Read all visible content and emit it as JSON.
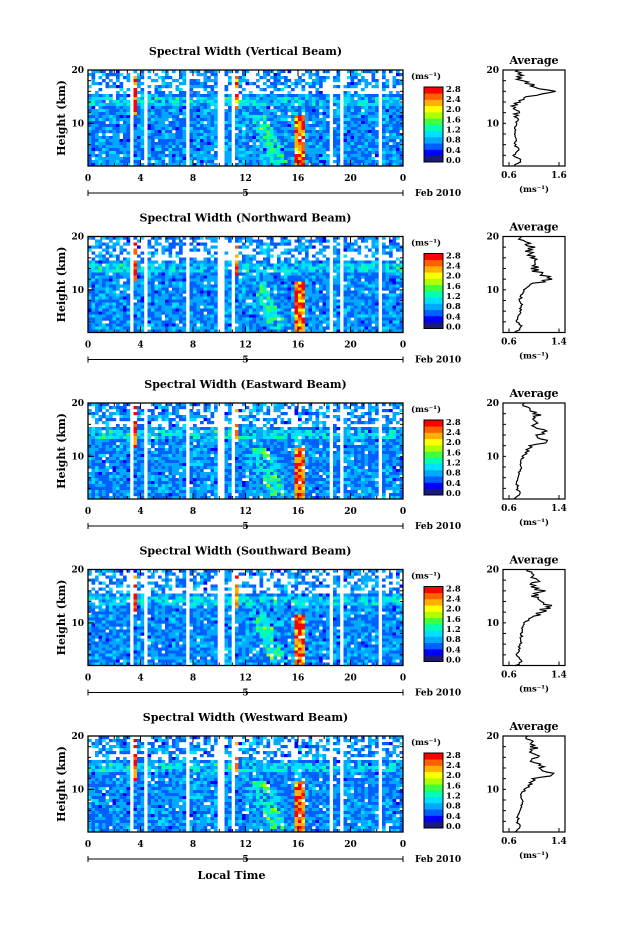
{
  "chart_data": {
    "type": "heatmap",
    "x_label": "Local Time",
    "date_label": "Feb 2010",
    "x_ticks": [
      "0",
      "4",
      "8",
      "12",
      "16",
      "20",
      "0"
    ],
    "x_range_hours": [
      0,
      24
    ],
    "day_marker": "5",
    "height_label": "Height (km)",
    "height_ticks": [
      "10",
      "20"
    ],
    "height_range_km": [
      2,
      20
    ],
    "colorbar": {
      "unit": "(ms⁻¹)",
      "ticks": [
        "2.8",
        "2.4",
        "2.0",
        "1.6",
        "1.2",
        "0.8",
        "0.4",
        "0.0"
      ],
      "range": [
        0.0,
        2.8
      ],
      "colors": [
        "#1a1a7a",
        "#0000ff",
        "#0060ff",
        "#00a8ff",
        "#00e0ff",
        "#00ffb0",
        "#40ff40",
        "#b0ff00",
        "#ffff00",
        "#ffb000",
        "#ff6000",
        "#ff0000"
      ]
    },
    "average_title": "Average",
    "average_unit": "(ms⁻¹)",
    "panels": [
      {
        "title": "Spectral Width (Vertical Beam)",
        "avg_ticks": [
          "0.6",
          "1.6"
        ],
        "avg_range": [
          0.6,
          1.6
        ],
        "avg_profile": {
          "height_km": [
            2,
            3,
            4,
            5,
            6,
            7,
            8,
            9,
            10,
            11,
            12,
            13,
            14,
            15,
            16,
            17,
            18,
            19,
            20
          ],
          "value": [
            0.7,
            0.85,
            0.7,
            0.8,
            0.72,
            0.75,
            0.7,
            0.72,
            0.75,
            0.78,
            0.74,
            0.7,
            0.8,
            1.0,
            1.45,
            1.1,
            0.85,
            0.8,
            0.78
          ]
        }
      },
      {
        "title": "Spectral Width (Northward Beam)",
        "avg_ticks": [
          "0.6",
          "1.4"
        ],
        "avg_range": [
          0.6,
          1.4
        ],
        "avg_profile": {
          "height_km": [
            2,
            3,
            4,
            5,
            6,
            7,
            8,
            9,
            10,
            11,
            12,
            13,
            14,
            15,
            16,
            17,
            18,
            19,
            20
          ],
          "value": [
            0.7,
            0.8,
            0.72,
            0.75,
            0.78,
            0.8,
            0.78,
            0.8,
            0.85,
            0.95,
            1.25,
            1.1,
            1.0,
            0.95,
            1.0,
            0.9,
            0.95,
            0.85,
            0.8
          ]
        }
      },
      {
        "title": "Spectral Width (Eastward Beam)",
        "avg_ticks": [
          "0.6",
          "1.4"
        ],
        "avg_range": [
          0.6,
          1.4
        ],
        "avg_profile": {
          "height_km": [
            2,
            3,
            4,
            5,
            6,
            7,
            8,
            9,
            10,
            11,
            12,
            13,
            14,
            15,
            16,
            17,
            18,
            19,
            20
          ],
          "value": [
            0.7,
            0.8,
            0.72,
            0.74,
            0.75,
            0.76,
            0.78,
            0.8,
            0.82,
            0.9,
            1.0,
            1.2,
            1.05,
            1.15,
            1.0,
            0.95,
            1.05,
            0.9,
            0.85
          ]
        }
      },
      {
        "title": "Spectral Width (Southward Beam)",
        "avg_ticks": [
          "0.6",
          "1.4"
        ],
        "avg_range": [
          0.6,
          1.4
        ],
        "avg_profile": {
          "height_km": [
            2,
            3,
            4,
            5,
            6,
            7,
            8,
            9,
            10,
            11,
            12,
            13,
            14,
            15,
            16,
            17,
            18,
            19,
            20
          ],
          "value": [
            0.72,
            0.8,
            0.72,
            0.76,
            0.78,
            0.8,
            0.8,
            0.82,
            0.85,
            0.95,
            1.1,
            1.25,
            1.05,
            1.0,
            1.1,
            0.95,
            1.05,
            1.0,
            0.9
          ]
        }
      },
      {
        "title": "Spectral Width (Westward Beam)",
        "avg_ticks": [
          "0.6",
          "1.4"
        ],
        "avg_range": [
          0.6,
          1.4
        ],
        "avg_profile": {
          "height_km": [
            2,
            3,
            4,
            5,
            6,
            7,
            8,
            9,
            10,
            11,
            12,
            13,
            14,
            15,
            16,
            17,
            18,
            19,
            20
          ],
          "value": [
            0.72,
            0.8,
            0.72,
            0.76,
            0.78,
            0.8,
            0.8,
            0.8,
            0.85,
            0.95,
            1.05,
            1.3,
            1.1,
            1.0,
            1.05,
            0.9,
            1.0,
            0.95,
            0.9
          ]
        }
      }
    ]
  }
}
